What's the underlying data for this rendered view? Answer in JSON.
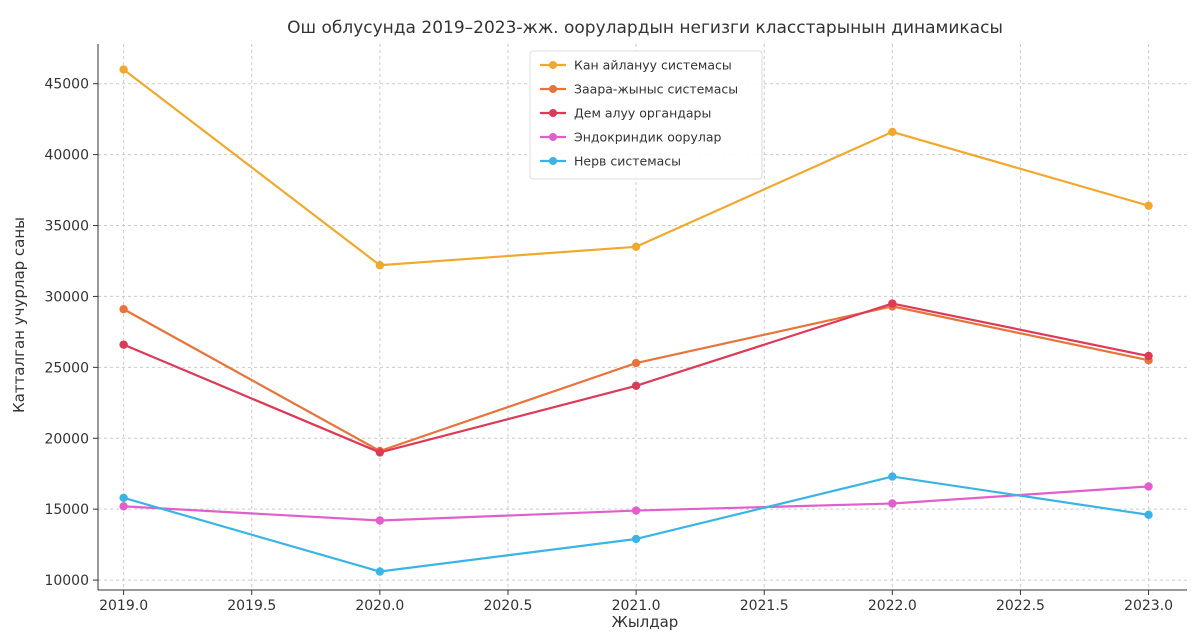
{
  "chart_data": {
    "type": "line",
    "title": "Ош облусунда 2019–2023-жж. оорулардын негизги класстарынын динамикасы",
    "xlabel": "Жылдар",
    "ylabel": "Катталган учурлар саны",
    "x": [
      2019,
      2020,
      2021,
      2022,
      2023
    ],
    "xlim": [
      2018.9,
      2023.15
    ],
    "ylim": [
      9300,
      47800
    ],
    "xticks": [
      2019.0,
      2019.5,
      2020.0,
      2020.5,
      2021.0,
      2021.5,
      2022.0,
      2022.5,
      2023.0
    ],
    "xtick_labels": [
      "2019.0",
      "2019.5",
      "2020.0",
      "2020.5",
      "2021.0",
      "2021.5",
      "2022.0",
      "2022.5",
      "2023.0"
    ],
    "yticks": [
      10000,
      15000,
      20000,
      25000,
      30000,
      35000,
      40000,
      45000
    ],
    "ytick_labels": [
      "10000",
      "15000",
      "20000",
      "25000",
      "30000",
      "35000",
      "40000",
      "45000"
    ],
    "grid": true,
    "legend_position": "top-center",
    "series": [
      {
        "name": "Кан айлануу системасы",
        "color": "#F0A92E",
        "values": [
          46000,
          32200,
          33500,
          41600,
          36400
        ]
      },
      {
        "name": "Заара-жыныс системасы",
        "color": "#E8743B",
        "values": [
          29100,
          19100,
          25300,
          29300,
          25500
        ]
      },
      {
        "name": "Дем алуу органдары",
        "color": "#DC3A56",
        "values": [
          26600,
          19000,
          23700,
          29500,
          25800
        ]
      },
      {
        "name": "Эндокриндик оорулар",
        "color": "#E25FCB",
        "values": [
          15200,
          14200,
          14900,
          15400,
          16600
        ]
      },
      {
        "name": "Нерв системасы",
        "color": "#3BB4E5",
        "values": [
          15800,
          10600,
          12900,
          17300,
          14600
        ]
      }
    ]
  }
}
